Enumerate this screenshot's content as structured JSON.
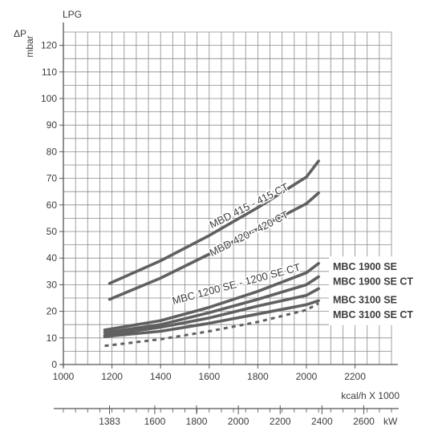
{
  "chart_data": {
    "type": "line",
    "title": "LPG",
    "ylabel_symbol": "ΔP",
    "ylabel_unit": "mbar",
    "xlabel": "kcal/h X 1000",
    "xlabel2": "kW",
    "xlim": [
      1000,
      2350
    ],
    "ylim": [
      0,
      125
    ],
    "x_ticks": [
      "1000",
      "1200",
      "1400",
      "1600",
      "1800",
      "2000",
      "2200"
    ],
    "y_ticks": [
      "0",
      "10",
      "20",
      "30",
      "40",
      "50",
      "60",
      "70",
      "80",
      "90",
      "100",
      "110",
      "120"
    ],
    "x2_ticks": [
      {
        "label": "1383",
        "x_kcal": 1190
      },
      {
        "label": "1600",
        "x_kcal": 1376
      },
      {
        "label": "1800",
        "x_kcal": 1548
      },
      {
        "label": "2000",
        "x_kcal": 1720
      },
      {
        "label": "2200",
        "x_kcal": 1892
      },
      {
        "label": "2400",
        "x_kcal": 2064
      },
      {
        "label": "2600",
        "x_kcal": 2236
      }
    ],
    "grid": true,
    "series": [
      {
        "name": "MBD 415 - 415 CT",
        "color": "#606060",
        "dash": false,
        "label_on": "curve",
        "points": [
          [
            1190,
            30.5
          ],
          [
            1400,
            39
          ],
          [
            1600,
            48.5
          ],
          [
            1800,
            59
          ],
          [
            2000,
            70.5
          ],
          [
            2050,
            76.5
          ]
        ]
      },
      {
        "name": "MBD 420 - 420 CT",
        "color": "#606060",
        "dash": false,
        "label_on": "curve",
        "points": [
          [
            1190,
            24.5
          ],
          [
            1400,
            32.5
          ],
          [
            1600,
            41.5
          ],
          [
            1800,
            51
          ],
          [
            2000,
            60.5
          ],
          [
            2050,
            64.5
          ]
        ]
      },
      {
        "name": "MBC 1200 SE - 1200 SE CT",
        "color": "#606060",
        "dash": false,
        "label_on": "curve",
        "points": [
          [
            1170,
            13
          ],
          [
            1400,
            16.5
          ],
          [
            1600,
            21.5
          ],
          [
            1800,
            27.5
          ],
          [
            2000,
            34.5
          ],
          [
            2050,
            38
          ]
        ]
      },
      {
        "name": "MBC 1900 SE",
        "color": "#606060",
        "dash": false,
        "label_on": "right",
        "points": [
          [
            1170,
            12
          ],
          [
            1400,
            15
          ],
          [
            1600,
            19.5
          ],
          [
            1800,
            24.5
          ],
          [
            2000,
            30
          ],
          [
            2050,
            33
          ]
        ]
      },
      {
        "name": "MBC 1900 SE CT",
        "color": "#606060",
        "dash": false,
        "label_on": "right",
        "points": [
          [
            1170,
            11
          ],
          [
            1400,
            14
          ],
          [
            1600,
            17.5
          ],
          [
            1800,
            22
          ],
          [
            2000,
            26
          ],
          [
            2050,
            28.5
          ]
        ]
      },
      {
        "name": "MBC 3100 SE",
        "color": "#606060",
        "dash": false,
        "label_on": "right",
        "points": [
          [
            1170,
            10.5
          ],
          [
            1400,
            12.5
          ],
          [
            1600,
            15.5
          ],
          [
            1800,
            19
          ],
          [
            2000,
            22.5
          ],
          [
            2050,
            24
          ]
        ]
      },
      {
        "name": "MBC 3100 SE CT",
        "color": "#606060",
        "dash": true,
        "label_on": "right",
        "points": [
          [
            1170,
            7
          ],
          [
            1400,
            9.5
          ],
          [
            1600,
            12.5
          ],
          [
            1800,
            16
          ],
          [
            2000,
            20.5
          ],
          [
            2050,
            23
          ]
        ]
      }
    ]
  }
}
